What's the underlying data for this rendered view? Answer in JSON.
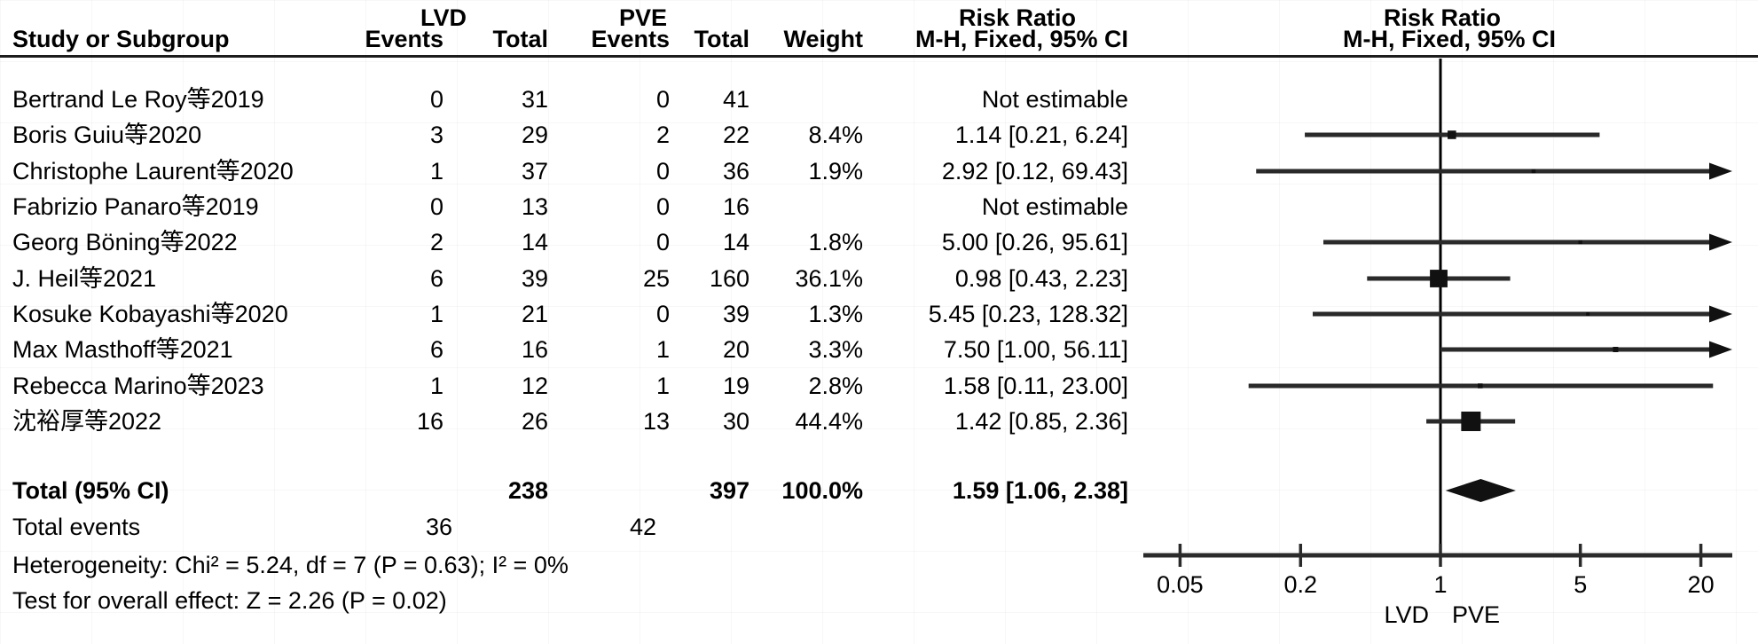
{
  "header": {
    "study_col": "Study or Subgroup",
    "group1": "LVD",
    "group2": "PVE",
    "events": "Events",
    "total": "Total",
    "weight": "Weight",
    "risk_ratio": "Risk Ratio",
    "method_ci": "M-H, Fixed, 95% CI"
  },
  "totals": {
    "label": "Total (95% CI)",
    "lvd_total": "238",
    "pve_total": "397",
    "weight": "100.0%",
    "rr_text": "1.59 [1.06, 2.38]",
    "events_label": "Total events",
    "lvd_events": "36",
    "pve_events": "42"
  },
  "footer": {
    "heterogeneity": "Heterogeneity: Chi² = 5.24, df = 7 (P = 0.63); I² = 0%",
    "overall_effect": "Test for overall effect: Z = 2.26 (P = 0.02)"
  },
  "chart_data": {
    "type": "forest_plot",
    "effect_measure": "Risk Ratio",
    "method": "M-H, Fixed, 95% CI",
    "x_scale": "log",
    "x_tick_labels": [
      "0.05",
      "0.2",
      "1",
      "5",
      "20"
    ],
    "x_tick_values": [
      0.05,
      0.2,
      1,
      5,
      20
    ],
    "axis_domain": [
      0.033,
      29
    ],
    "null_line": 1,
    "favours_left": "LVD",
    "favours_right": "PVE",
    "marker_color": "#111111",
    "line_color": "#2a2a2a",
    "studies": [
      {
        "name": "Bertrand Le Roy等2019",
        "lvd_events": "0",
        "lvd_total": "31",
        "pve_events": "0",
        "pve_total": "41",
        "weight": "",
        "rr_text": "Not estimable",
        "rr": null,
        "ci": null,
        "weight_pct": null
      },
      {
        "name": "Boris Guiu等2020",
        "lvd_events": "3",
        "lvd_total": "29",
        "pve_events": "2",
        "pve_total": "22",
        "weight": "8.4%",
        "rr_text": "1.14 [0.21, 6.24]",
        "rr": 1.14,
        "ci": [
          0.21,
          6.24
        ],
        "weight_pct": 8.4
      },
      {
        "name": "Christophe Laurent等2020",
        "lvd_events": "1",
        "lvd_total": "37",
        "pve_events": "0",
        "pve_total": "36",
        "weight": "1.9%",
        "rr_text": "2.92 [0.12, 69.43]",
        "rr": 2.92,
        "ci": [
          0.12,
          69.43
        ],
        "weight_pct": 1.9
      },
      {
        "name": "Fabrizio Panaro等2019",
        "lvd_events": "0",
        "lvd_total": "13",
        "pve_events": "0",
        "pve_total": "16",
        "weight": "",
        "rr_text": "Not estimable",
        "rr": null,
        "ci": null,
        "weight_pct": null
      },
      {
        "name": "Georg Böning等2022",
        "lvd_events": "2",
        "lvd_total": "14",
        "pve_events": "0",
        "pve_total": "14",
        "weight": "1.8%",
        "rr_text": "5.00 [0.26, 95.61]",
        "rr": 5.0,
        "ci": [
          0.26,
          95.61
        ],
        "weight_pct": 1.8
      },
      {
        "name": "J. Heil等2021",
        "lvd_events": "6",
        "lvd_total": "39",
        "pve_events": "25",
        "pve_total": "160",
        "weight": "36.1%",
        "rr_text": "0.98 [0.43, 2.23]",
        "rr": 0.98,
        "ci": [
          0.43,
          2.23
        ],
        "weight_pct": 36.1
      },
      {
        "name": "Kosuke Kobayashi等2020",
        "lvd_events": "1",
        "lvd_total": "21",
        "pve_events": "0",
        "pve_total": "39",
        "weight": "1.3%",
        "rr_text": "5.45 [0.23, 128.32]",
        "rr": 5.45,
        "ci": [
          0.23,
          128.32
        ],
        "weight_pct": 1.3
      },
      {
        "name": "Max Masthoff等2021",
        "lvd_events": "6",
        "lvd_total": "16",
        "pve_events": "1",
        "pve_total": "20",
        "weight": "3.3%",
        "rr_text": "7.50 [1.00, 56.11]",
        "rr": 7.5,
        "ci": [
          1.0,
          56.11
        ],
        "weight_pct": 3.3
      },
      {
        "name": "Rebecca Marino等2023",
        "lvd_events": "1",
        "lvd_total": "12",
        "pve_events": "1",
        "pve_total": "19",
        "weight": "2.8%",
        "rr_text": "1.58 [0.11, 23.00]",
        "rr": 1.58,
        "ci": [
          0.11,
          23.0
        ],
        "weight_pct": 2.8
      },
      {
        "name": "沈裕厚等2022",
        "lvd_events": "16",
        "lvd_total": "26",
        "pve_events": "13",
        "pve_total": "30",
        "weight": "44.4%",
        "rr_text": "1.42 [0.85, 2.36]",
        "rr": 1.42,
        "ci": [
          0.85,
          2.36
        ],
        "weight_pct": 44.4
      }
    ],
    "total": {
      "rr": 1.59,
      "ci": [
        1.06,
        2.38
      ]
    }
  }
}
